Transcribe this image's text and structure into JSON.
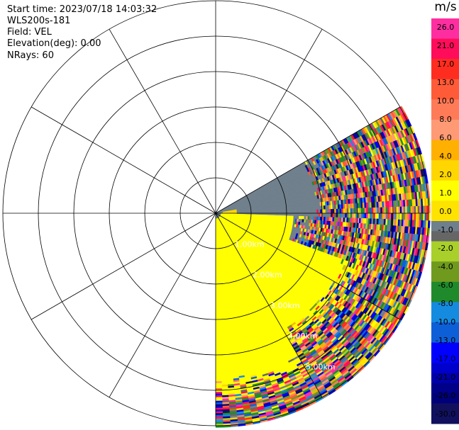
{
  "info": {
    "start_time": "Start time: 2023/07/18 14:03:32",
    "instrument": "WLS200s-181",
    "field": "Field: VEL",
    "elevation": "Elevation(deg): 0.00",
    "nrays": "NRays: 60"
  },
  "chart_data": {
    "type": "heatmap",
    "projection": "polar-ppi",
    "sector_deg_clockwise_from_north": [
      60,
      180
    ],
    "max_range_km": 6.0,
    "grid_rings_km": [
      1,
      2,
      3,
      4,
      5,
      6
    ],
    "spokes_deg": [
      0,
      30,
      60,
      90,
      120,
      150,
      180,
      210,
      240,
      270,
      300,
      330
    ],
    "range_labels": [
      "1.00km",
      "2.00km",
      "3.00km",
      "4.00km",
      "5.00km"
    ],
    "range_label_azimuth_deg": 150,
    "colorbar": {
      "title": "m/s",
      "tick_labels": [
        "26.0",
        "21.0",
        "17.0",
        "13.0",
        "10.0",
        "8.0",
        "6.0",
        "4.0",
        "2.0",
        "1.0",
        "0.0",
        "-1.0",
        "-2.0",
        "-4.0",
        "-6.0",
        "-8.0",
        "-10.0",
        "-13.0",
        "-17.0",
        "-21.0",
        "-26.0",
        "-30.0"
      ],
      "colors": [
        "#ff2ea0",
        "#ff2ea0",
        "#ff0d5a",
        "#ff0d5a",
        "#ff2d1f",
        "#ff2d1f",
        "#ff5b38",
        "#ff5b38",
        "#ff7b58",
        "#ff7b58",
        "#ff9a75",
        "#ff9a75",
        "#ffb000",
        "#ffb000",
        "#ffd600",
        "#ffd600",
        "#ffff00",
        "#ffff00",
        "#ffe300",
        "#ffe300",
        "#6f7f8c",
        "#666666",
        "#a8cf2a",
        "#a8cf2a",
        "#6f9a1e",
        "#6f9a1e",
        "#1f8a2b",
        "#1f8a2b",
        "#158be0",
        "#158be0",
        "#0d5fd8",
        "#0d5fd8",
        "#0000ff",
        "#0000ff",
        "#0000cc",
        "#0000aa",
        "#000088",
        "#00007a",
        "#10105e",
        "#10105e"
      ]
    },
    "region_velocity_mps": [
      {
        "azimuth_deg": [
          60,
          180
        ],
        "range_km": [
          0.0,
          0.15
        ],
        "value": 0.0
      },
      {
        "azimuth_deg": [
          60,
          92
        ],
        "range_km": [
          0.15,
          2.8
        ],
        "value": 0.0
      },
      {
        "azimuth_deg": [
          80,
          92
        ],
        "range_km": [
          0.2,
          0.6
        ],
        "value": 4.0
      },
      {
        "azimuth_deg": [
          92,
          110
        ],
        "range_km": [
          0.15,
          2.2
        ],
        "value": 3.0
      },
      {
        "azimuth_deg": [
          110,
          150
        ],
        "range_km": [
          0.15,
          3.8
        ],
        "value": 3.0
      },
      {
        "azimuth_deg": [
          150,
          180
        ],
        "range_km": [
          0.15,
          4.8
        ],
        "value": 2.0
      },
      {
        "azimuth_deg": [
          60,
          180
        ],
        "range_km": [
          3.8,
          6.0
        ],
        "value": "noise"
      }
    ]
  }
}
